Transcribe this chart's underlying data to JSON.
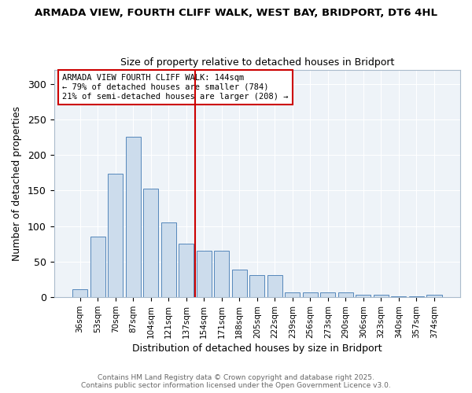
{
  "title_line1": "ARMADA VIEW, FOURTH CLIFF WALK, WEST BAY, BRIDPORT, DT6 4HL",
  "title_line2": "Size of property relative to detached houses in Bridport",
  "xlabel": "Distribution of detached houses by size in Bridport",
  "ylabel": "Number of detached properties",
  "categories": [
    "36sqm",
    "53sqm",
    "70sqm",
    "87sqm",
    "104sqm",
    "121sqm",
    "137sqm",
    "154sqm",
    "171sqm",
    "188sqm",
    "205sqm",
    "222sqm",
    "239sqm",
    "256sqm",
    "273sqm",
    "290sqm",
    "306sqm",
    "323sqm",
    "340sqm",
    "357sqm",
    "374sqm"
  ],
  "values": [
    11,
    85,
    174,
    226,
    153,
    105,
    75,
    65,
    65,
    39,
    31,
    31,
    7,
    7,
    7,
    7,
    4,
    4,
    1,
    1,
    3
  ],
  "bar_color": "#ccdcec",
  "bar_edge_color": "#5588bb",
  "vline_x": 7.0,
  "vline_color": "#cc0000",
  "annotation_text": "ARMADA VIEW FOURTH CLIFF WALK: 144sqm\n← 79% of detached houses are smaller (784)\n21% of semi-detached houses are larger (208) →",
  "annotation_box_color": "#ffffff",
  "annotation_box_edge": "#cc0000",
  "ylim": [
    0,
    320
  ],
  "yticks": [
    0,
    50,
    100,
    150,
    200,
    250,
    300
  ],
  "footer_line1": "Contains HM Land Registry data © Crown copyright and database right 2025.",
  "footer_line2": "Contains public sector information licensed under the Open Government Licence v3.0.",
  "plot_bg_color": "#eef3f8",
  "fig_bg_color": "#ffffff"
}
